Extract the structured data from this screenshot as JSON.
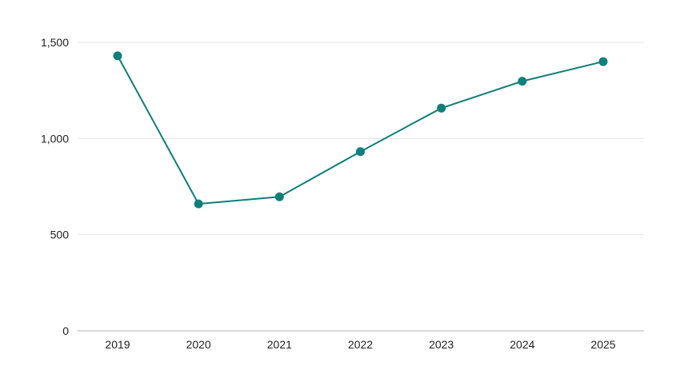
{
  "chart_data": {
    "type": "line",
    "title": "",
    "xlabel": "",
    "ylabel": "",
    "categories": [
      "2019",
      "2020",
      "2021",
      "2022",
      "2023",
      "2024",
      "2025"
    ],
    "series": [
      {
        "values": [
          1430,
          660,
          697,
          932,
          1158,
          1298,
          1400
        ],
        "color": "#0e7f7a"
      }
    ],
    "ylim": [
      0,
      1500
    ],
    "yticks": [
      0,
      500,
      1000,
      1500
    ],
    "ytick_labels": [
      "0",
      "500",
      "1,000",
      "1,500"
    ],
    "grid": true,
    "legend": "none",
    "colors": {
      "line": "#0e7f7a",
      "grid": "#e6e6e6",
      "axis": "#b3b3b3",
      "text": "#222222"
    }
  }
}
